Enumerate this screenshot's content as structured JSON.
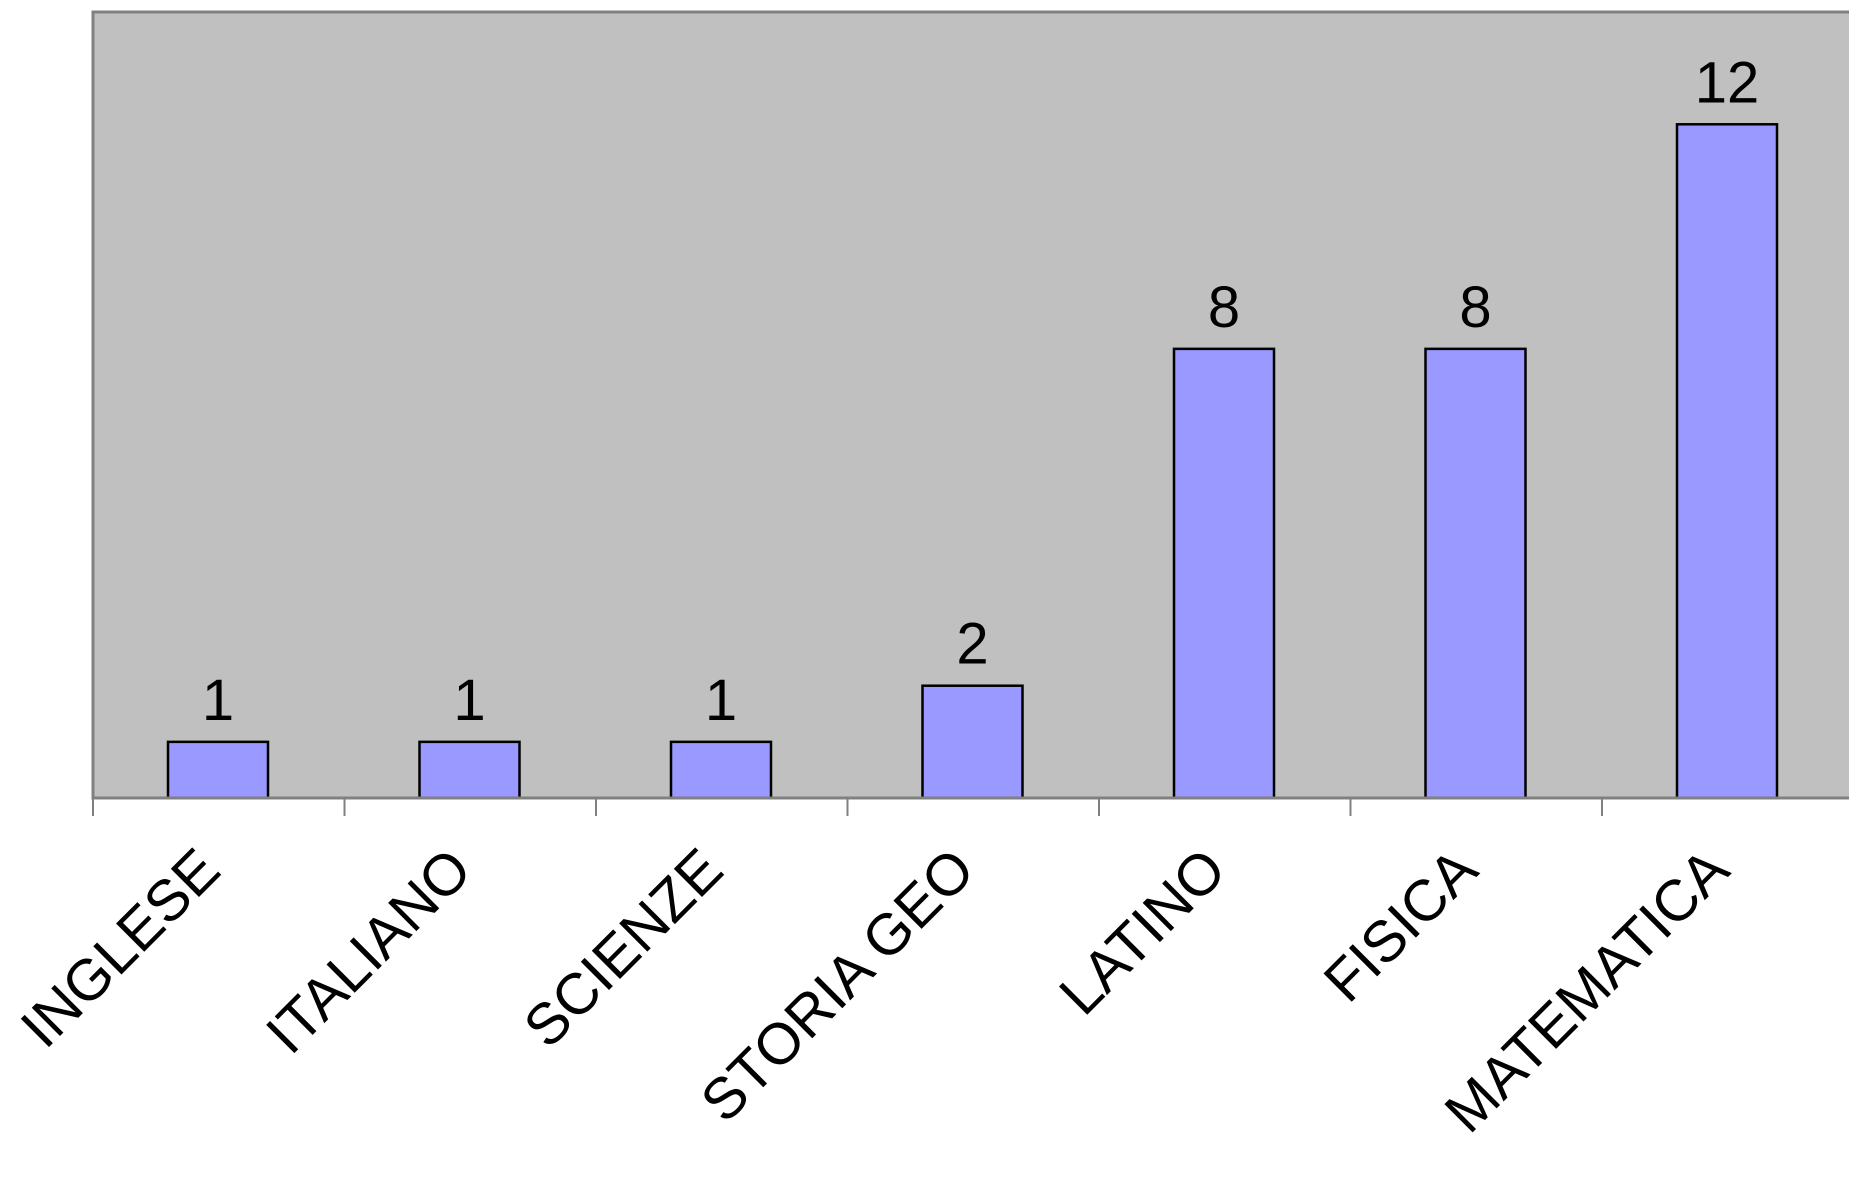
{
  "chart_data": {
    "type": "bar",
    "title": "",
    "xlabel": "",
    "ylabel": "",
    "categories": [
      "INGLESE",
      "ITALIANO",
      "SCIENZE",
      "STORIA GEO",
      "LATINO",
      "FISICA",
      "MATEMATICA"
    ],
    "values": [
      1,
      1,
      1,
      2,
      8,
      8,
      12
    ],
    "data_labels": [
      "1",
      "1",
      "1",
      "2",
      "8",
      "8",
      "12"
    ],
    "ylim": [
      0,
      14
    ],
    "grid": false,
    "legend": "none",
    "colors": {
      "bar_fill": "#9999ff",
      "bar_stroke": "#000000",
      "plot_background": "#c0c0c0",
      "axis": "#808080"
    }
  }
}
